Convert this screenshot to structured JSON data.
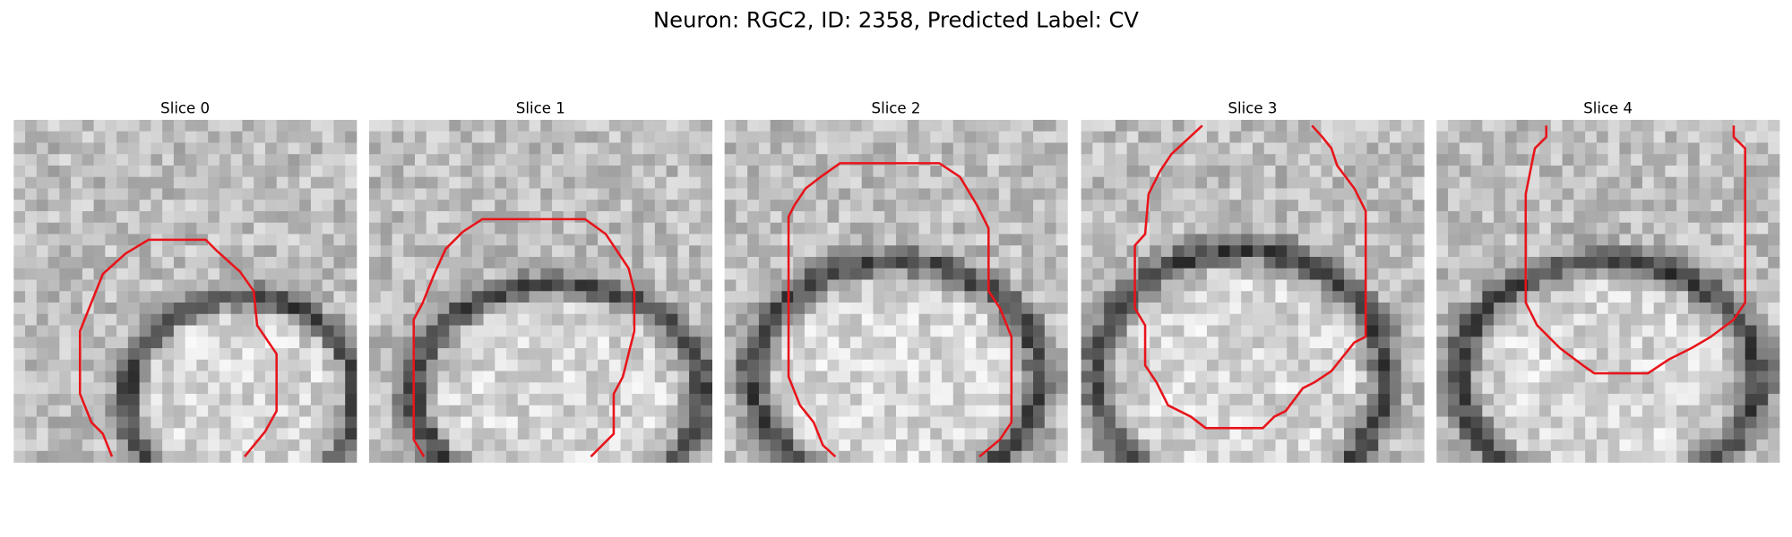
{
  "title": "Neuron: RGC2, ID: 2358, Predicted Label: CV",
  "panels": [
    {
      "title": "Slice 0"
    },
    {
      "title": "Slice 1"
    },
    {
      "title": "Slice 2"
    },
    {
      "title": "Slice 3"
    },
    {
      "title": "Slice 4"
    }
  ]
}
